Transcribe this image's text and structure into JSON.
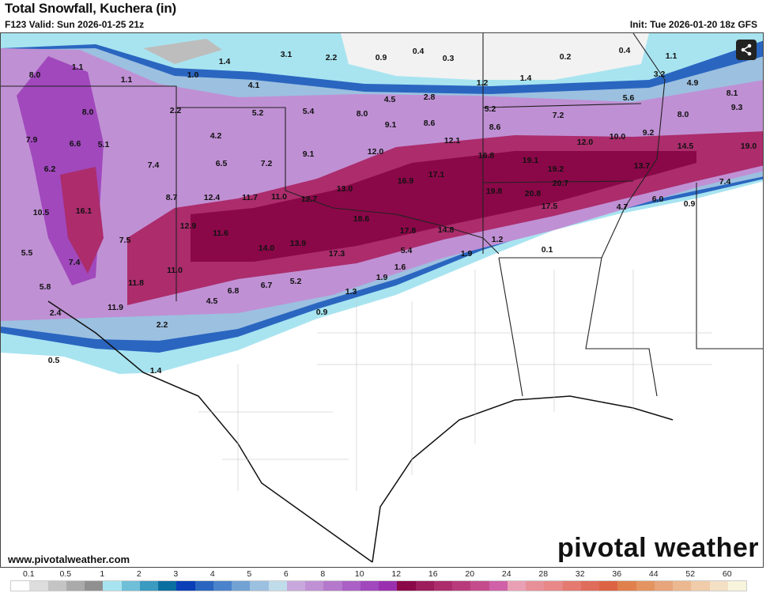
{
  "header": {
    "title": "Total Snowfall, Kuchera (in)",
    "valid": "F123 Valid: Sun 2026-01-25 21z",
    "init": "Init: Tue 2026-01-20 18z GFS"
  },
  "share_icon": "share-icon",
  "footer": {
    "website": "www.pivotalweather.com",
    "logo": "pivotal weather"
  },
  "map": {
    "snowfall_labels": [
      "1.1",
      "8.0",
      "1.1",
      "1.0",
      "1.4",
      "3.1",
      "2.2",
      "0.9",
      "0.4",
      "0.3",
      "0.2",
      "0.4",
      "1.1",
      "4.1",
      "3.2",
      "4.9",
      "1.2",
      "1.4",
      "8.1",
      "9.3",
      "5.6",
      "4.5",
      "2.8",
      "8.0",
      "2.2",
      "5.2",
      "5.4",
      "8.0",
      "5.2",
      "7.2",
      "8.0",
      "9.1",
      "8.6",
      "8.6",
      "7.9",
      "6.6",
      "5.1",
      "4.2",
      "12.1",
      "10.0",
      "9.2",
      "12.0",
      "14.5",
      "19.0",
      "9.1",
      "12.0",
      "16.8",
      "19.1",
      "6.2",
      "7.4",
      "6.5",
      "7.2",
      "17.1",
      "19.2",
      "13.7",
      "16.9",
      "20.7",
      "7.4",
      "13.0",
      "8.7",
      "12.4",
      "11.7",
      "11.0",
      "12.7",
      "19.8",
      "20.8",
      "6.0",
      "4.7",
      "0.9",
      "17.5",
      "10.5",
      "16.1",
      "18.6",
      "12.9",
      "11.6",
      "17.8",
      "14.8",
      "1.2",
      "7.5",
      "14.0",
      "13.9",
      "17.3",
      "5.4",
      "1.9",
      "0.1",
      "5.5",
      "7.4",
      "11.0",
      "1.6",
      "1.9",
      "5.8",
      "11.8",
      "5.2",
      "6.7",
      "6.8",
      "1.3",
      "11.9",
      "4.5",
      "2.4",
      "0.9",
      "2.2",
      "0.5",
      "1.4"
    ]
  },
  "legend": {
    "ticks": [
      "0.1",
      "0.5",
      "1",
      "2",
      "3",
      "4",
      "5",
      "6",
      "8",
      "10",
      "12",
      "16",
      "20",
      "24",
      "28",
      "32",
      "36",
      "44",
      "52",
      "60"
    ],
    "colors": [
      "#ffffff",
      "#dddddd",
      "#c4c4c4",
      "#aaaaaa",
      "#909090",
      "#a8e4f0",
      "#6fbfd8",
      "#3a9ac0",
      "#0a6fa0",
      "#0a3fb8",
      "#2a66c0",
      "#4a82cc",
      "#72a2d4",
      "#9cc0e0",
      "#c0dcea",
      "#c8a8dc",
      "#c090d4",
      "#b478cc",
      "#aa60c4",
      "#a048bc",
      "#9a30b0",
      "#8a0848",
      "#9c1c5c",
      "#ac2c6c",
      "#b83c7c",
      "#c44c8c",
      "#d060a8",
      "#eaa0b4",
      "#e89098",
      "#e88888",
      "#e47a70",
      "#e06c5c",
      "#dc6444",
      "#e0804c",
      "#e49460",
      "#e8a47a",
      "#ecb890",
      "#f0ccaa",
      "#f4e0c4",
      "#f8f4dc"
    ]
  }
}
